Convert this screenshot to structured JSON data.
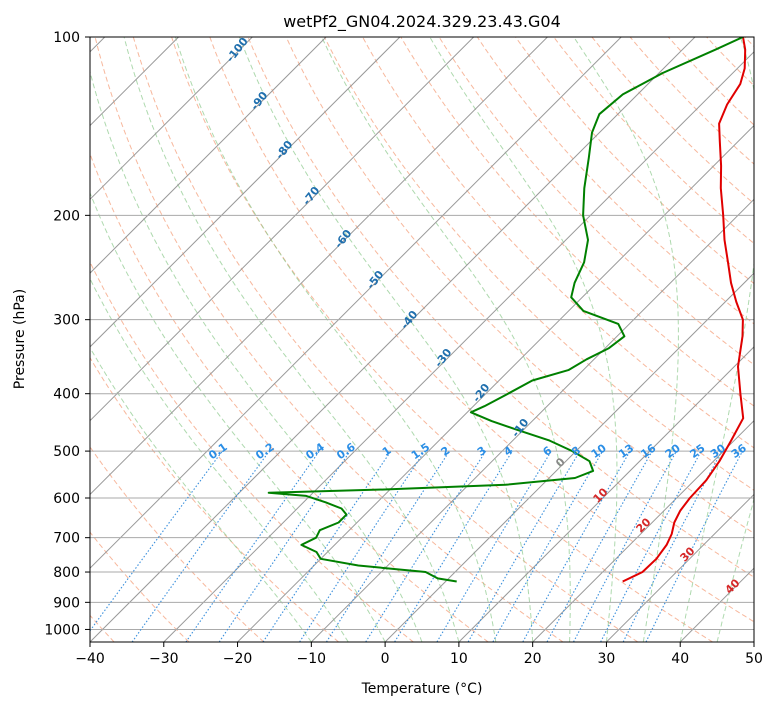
{
  "chart_data": {
    "type": "skew-t",
    "title": "wetPf2_GN04.2024.329.23.43.G04",
    "xlabel": "Temperature (°C)",
    "ylabel": "Pressure (hPa)",
    "xlim": [
      -40,
      50
    ],
    "ylim": [
      1050,
      100
    ],
    "yscale": "log",
    "x_ticks": [
      -40,
      -30,
      -20,
      -10,
      0,
      10,
      20,
      30,
      40,
      50
    ],
    "y_ticks": [
      100,
      200,
      300,
      400,
      500,
      600,
      700,
      800,
      900,
      1000
    ],
    "grid": true,
    "background_lines": {
      "isotherms_deg_c": [
        -140,
        -130,
        -120,
        -110,
        -100,
        -90,
        -80,
        -70,
        -60,
        -50,
        -40,
        -30,
        -20,
        -10,
        0,
        10,
        20,
        30,
        40,
        50
      ],
      "dry_adiabat_labels": [
        "-100",
        "-90",
        "-80",
        "-70",
        "-60",
        "-50",
        "-40",
        "-30",
        "-20",
        "-10"
      ],
      "moist_adiabat_labels": [
        "0",
        "10",
        "20",
        "30",
        "40"
      ],
      "mixing_ratio_labels": [
        "0.1",
        "0.2",
        "0.4",
        "0.6",
        "1",
        "1.5",
        "2",
        "3",
        "4",
        "6",
        "8",
        "10",
        "13",
        "16",
        "20",
        "25",
        "30",
        "36"
      ]
    },
    "series": [
      {
        "color": "#e00000",
        "points": [
          {
            "p": 830,
            "t": 24.0
          },
          {
            "p": 800,
            "t": 25.4
          },
          {
            "p": 760,
            "t": 25.5
          },
          {
            "p": 720,
            "t": 25.0
          },
          {
            "p": 690,
            "t": 24.2
          },
          {
            "p": 660,
            "t": 23.0
          },
          {
            "p": 630,
            "t": 22.2
          },
          {
            "p": 600,
            "t": 21.8
          },
          {
            "p": 560,
            "t": 21.6
          },
          {
            "p": 520,
            "t": 20.8
          },
          {
            "p": 480,
            "t": 19.6
          },
          {
            "p": 440,
            "t": 18.2
          },
          {
            "p": 400,
            "t": 14.5
          },
          {
            "p": 360,
            "t": 10.5
          },
          {
            "p": 320,
            "t": 7.0
          },
          {
            "p": 300,
            "t": 4.8
          },
          {
            "p": 280,
            "t": 1.5
          },
          {
            "p": 260,
            "t": -1.8
          },
          {
            "p": 240,
            "t": -5.0
          },
          {
            "p": 220,
            "t": -8.5
          },
          {
            "p": 200,
            "t": -12.0
          },
          {
            "p": 180,
            "t": -16.0
          },
          {
            "p": 165,
            "t": -19.0
          },
          {
            "p": 150,
            "t": -22.5
          },
          {
            "p": 140,
            "t": -25.0
          },
          {
            "p": 130,
            "t": -26.5
          },
          {
            "p": 120,
            "t": -27.5
          },
          {
            "p": 113,
            "t": -29.0
          },
          {
            "p": 105,
            "t": -31.5
          },
          {
            "p": 100,
            "t": -33.5
          }
        ]
      },
      {
        "color": "#008000",
        "points": [
          {
            "p": 830,
            "t": 1.5
          },
          {
            "p": 820,
            "t": -1.5
          },
          {
            "p": 800,
            "t": -4.0
          },
          {
            "p": 780,
            "t": -14.0
          },
          {
            "p": 760,
            "t": -20.0
          },
          {
            "p": 740,
            "t": -21.5
          },
          {
            "p": 720,
            "t": -24.5
          },
          {
            "p": 700,
            "t": -23.5
          },
          {
            "p": 680,
            "t": -24.0
          },
          {
            "p": 660,
            "t": -22.5
          },
          {
            "p": 640,
            "t": -22.5
          },
          {
            "p": 625,
            "t": -24.0
          },
          {
            "p": 610,
            "t": -27.0
          },
          {
            "p": 595,
            "t": -30.5
          },
          {
            "p": 588,
            "t": -36.0
          },
          {
            "p": 580,
            "t": -20.0
          },
          {
            "p": 570,
            "t": -5.0
          },
          {
            "p": 555,
            "t": 3.5
          },
          {
            "p": 540,
            "t": 5.0
          },
          {
            "p": 520,
            "t": 3.2
          },
          {
            "p": 500,
            "t": -0.5
          },
          {
            "p": 480,
            "t": -5.0
          },
          {
            "p": 460,
            "t": -11.0
          },
          {
            "p": 445,
            "t": -15.5
          },
          {
            "p": 430,
            "t": -19.5
          },
          {
            "p": 420,
            "t": -18.5
          },
          {
            "p": 400,
            "t": -17.0
          },
          {
            "p": 380,
            "t": -15.5
          },
          {
            "p": 365,
            "t": -12.0
          },
          {
            "p": 350,
            "t": -11.0
          },
          {
            "p": 335,
            "t": -9.5
          },
          {
            "p": 320,
            "t": -9.0
          },
          {
            "p": 305,
            "t": -11.5
          },
          {
            "p": 290,
            "t": -18.0
          },
          {
            "p": 275,
            "t": -21.5
          },
          {
            "p": 260,
            "t": -23.0
          },
          {
            "p": 240,
            "t": -24.5
          },
          {
            "p": 220,
            "t": -27.0
          },
          {
            "p": 200,
            "t": -31.0
          },
          {
            "p": 180,
            "t": -34.5
          },
          {
            "p": 160,
            "t": -38.0
          },
          {
            "p": 145,
            "t": -41.0
          },
          {
            "p": 135,
            "t": -42.5
          },
          {
            "p": 125,
            "t": -42.0
          },
          {
            "p": 115,
            "t": -39.5
          },
          {
            "p": 105,
            "t": -35.5
          },
          {
            "p": 100,
            "t": -33.5
          }
        ]
      }
    ]
  }
}
